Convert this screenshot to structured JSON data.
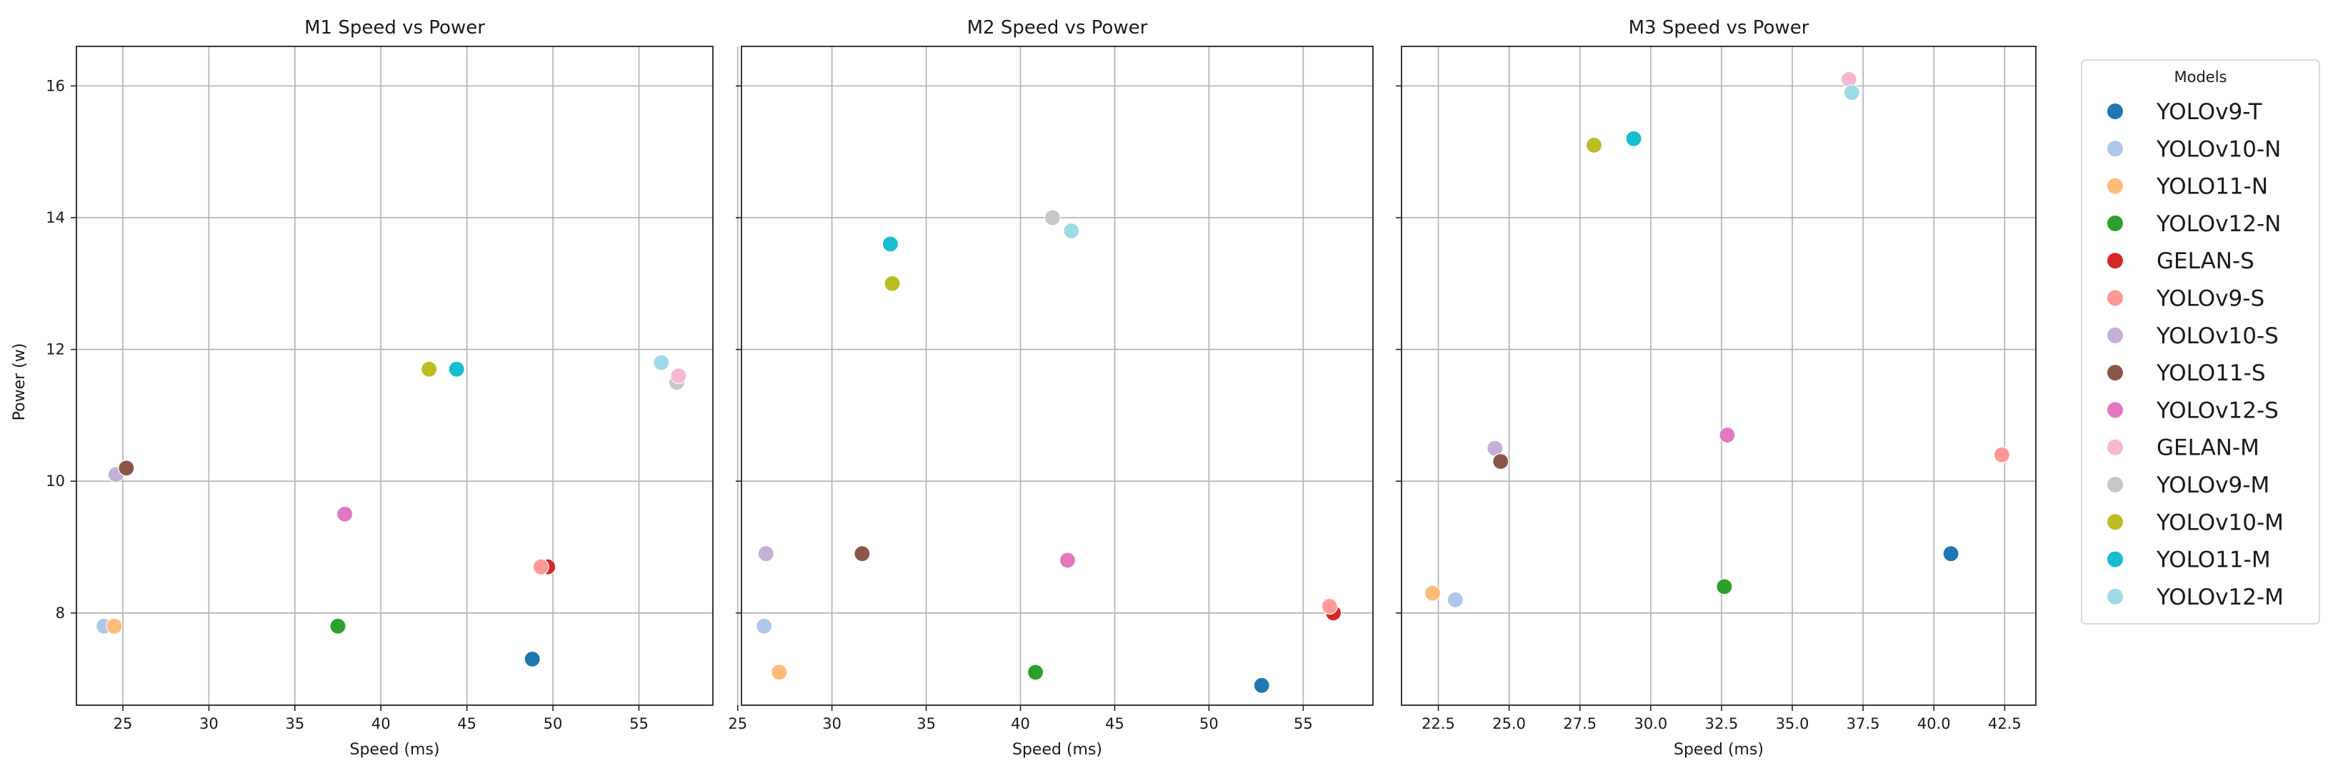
{
  "chart_data": {
    "type": "scatter",
    "shared_y": true,
    "ylabel": "Power (w)",
    "ylim": [
      6.6,
      16.6
    ],
    "yticks": [
      8,
      10,
      12,
      14,
      16
    ],
    "grid": true,
    "legend": {
      "title": "Models",
      "placement": "right outside",
      "entries": [
        {
          "name": "YOLOv9-T",
          "color": "#1f77b4"
        },
        {
          "name": "YOLOv10-N",
          "color": "#aec7e8"
        },
        {
          "name": "YOLO11-N",
          "color": "#ffbb78"
        },
        {
          "name": "YOLOv12-N",
          "color": "#2ca02c"
        },
        {
          "name": "GELAN-S",
          "color": "#d62728"
        },
        {
          "name": "YOLOv9-S",
          "color": "#ff9896"
        },
        {
          "name": "YOLOv10-S",
          "color": "#c5b0d5"
        },
        {
          "name": "YOLO11-S",
          "color": "#8c564b"
        },
        {
          "name": "YOLOv12-S",
          "color": "#e377c2"
        },
        {
          "name": "GELAN-M",
          "color": "#f7b6d2"
        },
        {
          "name": "YOLOv9-M",
          "color": "#c7c7c7"
        },
        {
          "name": "YOLOv10-M",
          "color": "#bcbd22"
        },
        {
          "name": "YOLO11-M",
          "color": "#17becf"
        },
        {
          "name": "YOLOv12-M",
          "color": "#9edae5"
        }
      ]
    },
    "panels": [
      {
        "title": "M1 Speed vs Power",
        "xlabel": "Speed (ms)",
        "xlim": [
          22.3,
          59.3
        ],
        "xticks": [
          25,
          30,
          35,
          40,
          45,
          50,
          55
        ],
        "xtick_labels": [
          "25",
          "30",
          "35",
          "40",
          "45",
          "50",
          "55"
        ],
        "points": [
          {
            "model": "YOLOv9-T",
            "x": 48.8,
            "y": 7.3
          },
          {
            "model": "YOLOv10-N",
            "x": 23.9,
            "y": 7.8
          },
          {
            "model": "YOLO11-N",
            "x": 24.5,
            "y": 7.8
          },
          {
            "model": "YOLOv12-N",
            "x": 37.5,
            "y": 7.8
          },
          {
            "model": "GELAN-S",
            "x": 49.7,
            "y": 8.7
          },
          {
            "model": "YOLOv9-S",
            "x": 49.3,
            "y": 8.7
          },
          {
            "model": "YOLOv10-S",
            "x": 24.6,
            "y": 10.1
          },
          {
            "model": "YOLO11-S",
            "x": 25.2,
            "y": 10.2
          },
          {
            "model": "YOLOv12-S",
            "x": 37.9,
            "y": 9.5
          },
          {
            "model": "YOLOv9-M",
            "x": 57.2,
            "y": 11.5
          },
          {
            "model": "GELAN-M",
            "x": 57.3,
            "y": 11.6
          },
          {
            "model": "YOLOv10-M",
            "x": 42.8,
            "y": 11.7
          },
          {
            "model": "YOLO11-M",
            "x": 44.4,
            "y": 11.7
          },
          {
            "model": "YOLOv12-M",
            "x": 56.3,
            "y": 11.8
          }
        ]
      },
      {
        "title": "M2 Speed vs Power",
        "xlabel": "Speed (ms)",
        "xlim": [
          25.2,
          58.7
        ],
        "xticks": [
          25,
          30,
          35,
          40,
          45,
          50,
          55
        ],
        "xtick_labels": [
          "25",
          "30",
          "35",
          "40",
          "45",
          "50",
          "55"
        ],
        "points": [
          {
            "model": "YOLOv9-T",
            "x": 52.8,
            "y": 6.9
          },
          {
            "model": "YOLOv10-N",
            "x": 26.4,
            "y": 7.8
          },
          {
            "model": "YOLO11-N",
            "x": 27.2,
            "y": 7.1
          },
          {
            "model": "YOLOv12-N",
            "x": 40.8,
            "y": 7.1
          },
          {
            "model": "GELAN-S",
            "x": 56.6,
            "y": 8.0
          },
          {
            "model": "YOLOv9-S",
            "x": 56.4,
            "y": 8.1
          },
          {
            "model": "YOLOv10-S",
            "x": 26.5,
            "y": 8.9
          },
          {
            "model": "YOLO11-S",
            "x": 31.6,
            "y": 8.9
          },
          {
            "model": "YOLOv12-S",
            "x": 42.5,
            "y": 8.8
          },
          {
            "model": "YOLOv9-M",
            "x": 41.7,
            "y": 14.0
          },
          {
            "model": "YOLOv10-M",
            "x": 33.2,
            "y": 13.0
          },
          {
            "model": "YOLO11-M",
            "x": 33.1,
            "y": 13.6
          },
          {
            "model": "YOLOv12-M",
            "x": 42.7,
            "y": 13.8
          }
        ]
      },
      {
        "title": "M3 Speed vs Power",
        "xlabel": "Speed (ms)",
        "xlim": [
          21.2,
          43.6
        ],
        "xticks": [
          22.5,
          25,
          27.5,
          30,
          32.5,
          35,
          37.5,
          40,
          42.5
        ],
        "xtick_labels": [
          "22.5",
          "25.0",
          "27.5",
          "30.0",
          "32.5",
          "35.0",
          "37.5",
          "40.0",
          "42.5"
        ],
        "points": [
          {
            "model": "YOLOv9-T",
            "x": 40.6,
            "y": 8.9
          },
          {
            "model": "YOLOv10-N",
            "x": 23.1,
            "y": 8.2
          },
          {
            "model": "YOLO11-N",
            "x": 22.3,
            "y": 8.3
          },
          {
            "model": "YOLOv12-N",
            "x": 32.6,
            "y": 8.4
          },
          {
            "model": "YOLOv9-S",
            "x": 42.4,
            "y": 10.4
          },
          {
            "model": "YOLOv10-S",
            "x": 24.5,
            "y": 10.5
          },
          {
            "model": "YOLO11-S",
            "x": 24.7,
            "y": 10.3
          },
          {
            "model": "YOLOv12-S",
            "x": 32.7,
            "y": 10.7
          },
          {
            "model": "GELAN-M",
            "x": 37.0,
            "y": 16.1
          },
          {
            "model": "YOLOv10-M",
            "x": 28.0,
            "y": 15.1
          },
          {
            "model": "YOLO11-M",
            "x": 29.4,
            "y": 15.2
          },
          {
            "model": "YOLOv12-M",
            "x": 37.1,
            "y": 15.9
          }
        ]
      }
    ]
  }
}
